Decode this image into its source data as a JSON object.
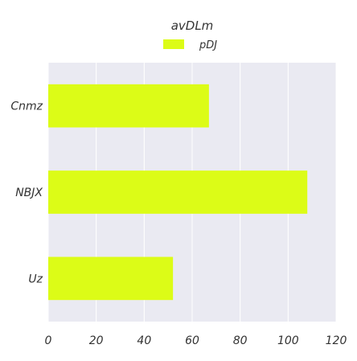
{
  "colors": {
    "plot_background": "#eaeaf2",
    "bar": "#dcfc17",
    "text": "#333333"
  },
  "chart_data": {
    "type": "bar",
    "orientation": "horizontal",
    "title": "",
    "legend": {
      "title": "avDLm",
      "placement": "top-center",
      "entries": [
        "pDJ"
      ]
    },
    "categories": [
      "Cnmz",
      "NBJX",
      "Uz"
    ],
    "series": [
      {
        "name": "pDJ",
        "values": [
          67,
          108,
          52
        ]
      }
    ],
    "xlim": [
      0,
      120
    ],
    "xticks": [
      0,
      20,
      40,
      60,
      80,
      100,
      120
    ],
    "xlabel": "",
    "ylabel": "",
    "grid": true
  }
}
